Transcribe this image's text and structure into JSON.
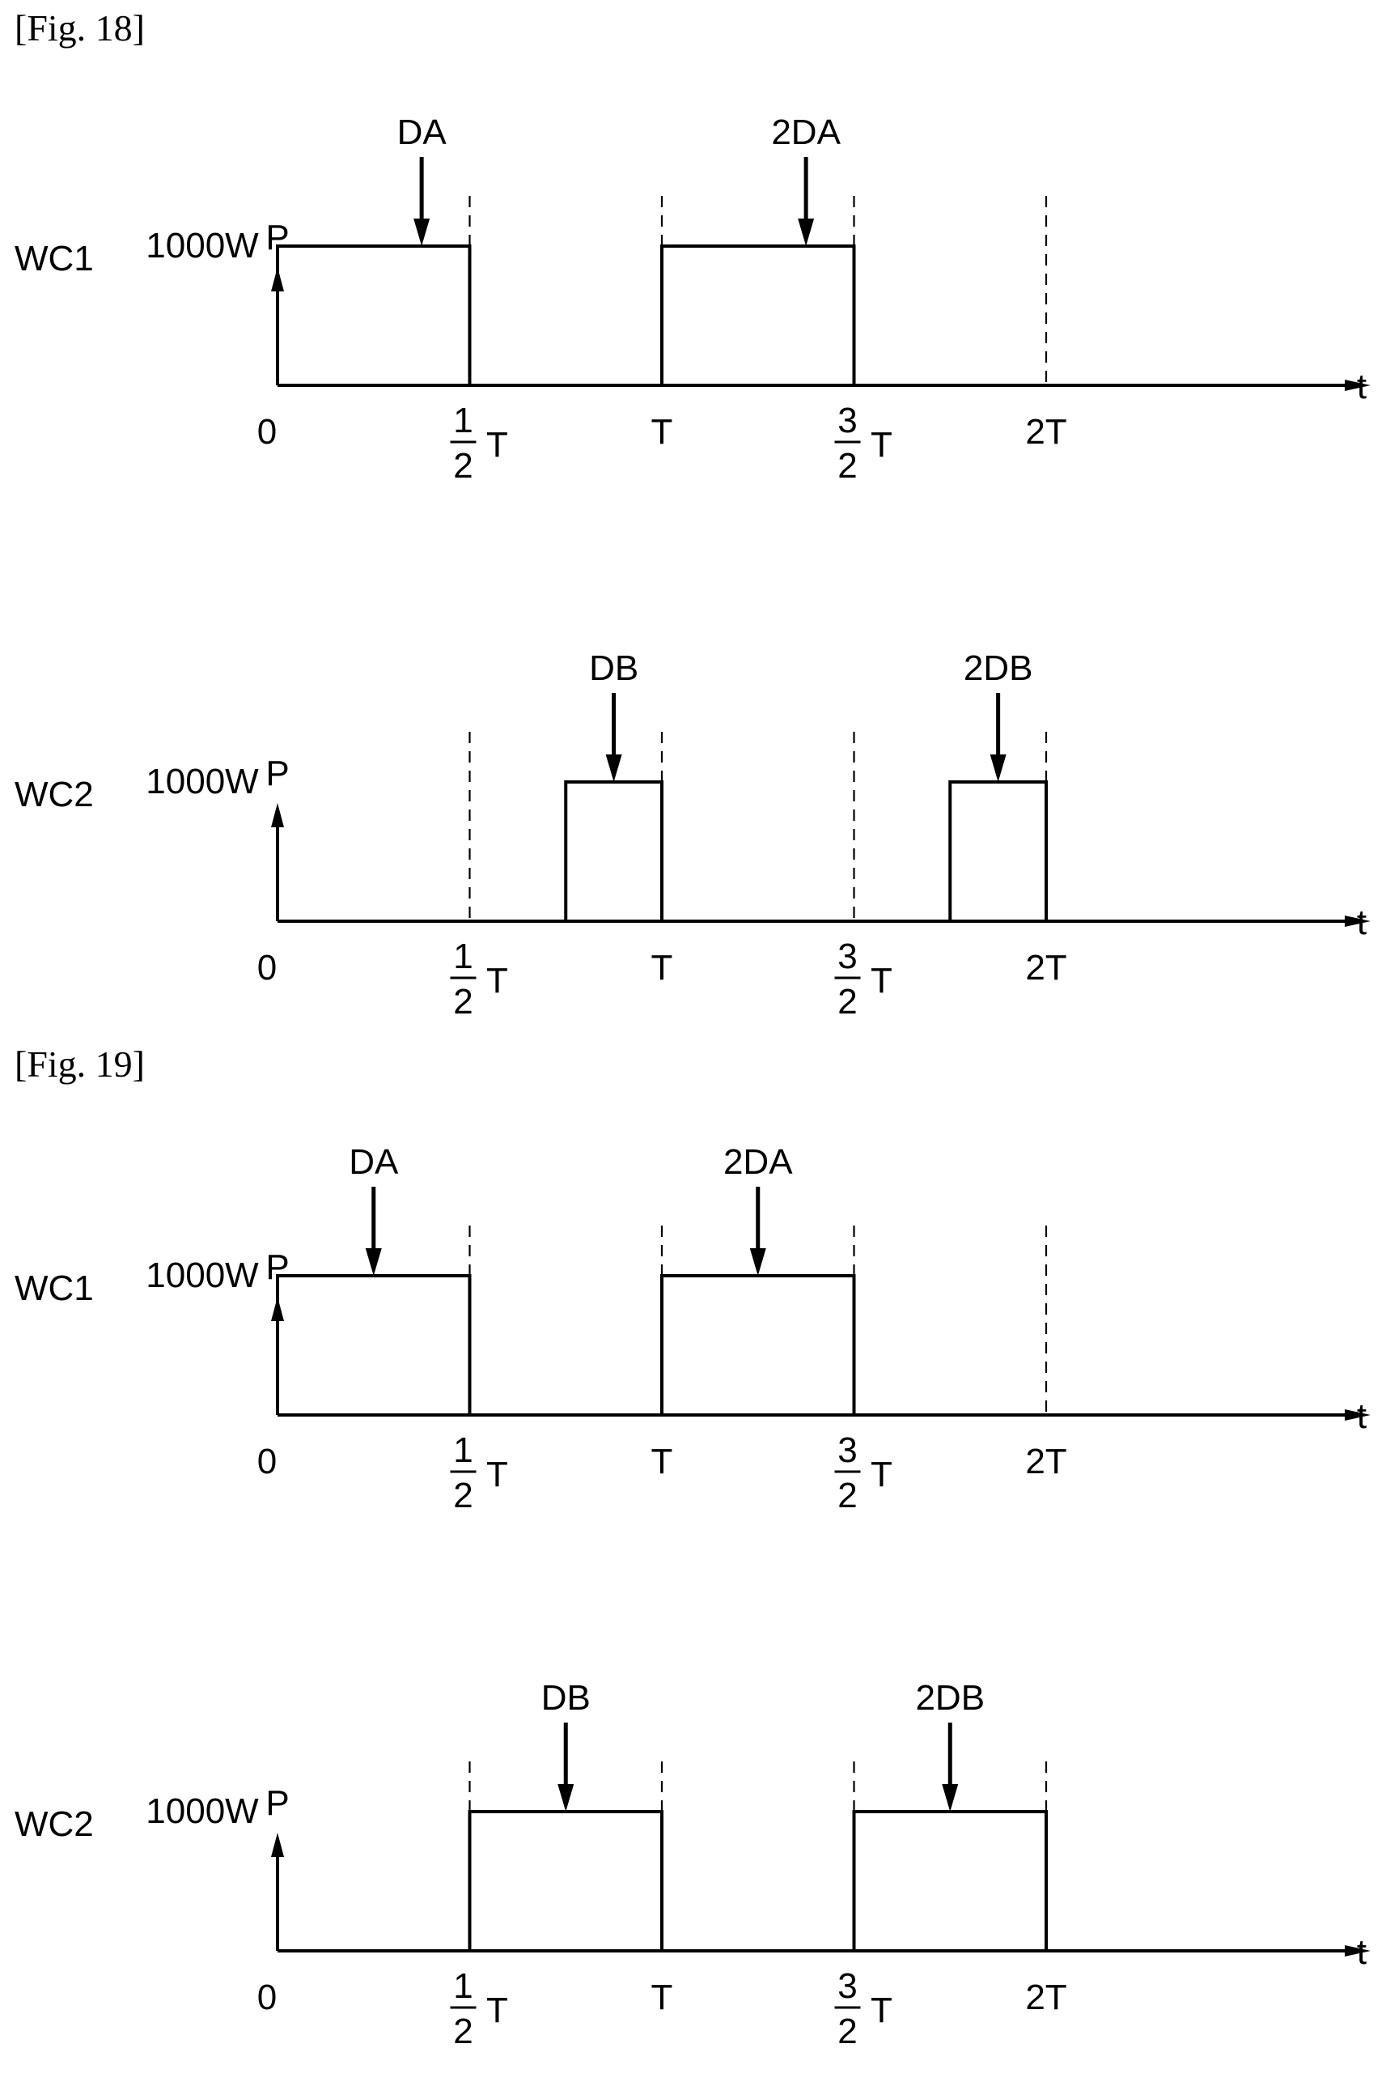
{
  "figures": [
    {
      "label": "[Fig. 18]",
      "panels": [
        {
          "channel": "WC1",
          "y_axis": "P",
          "x_axis": "t",
          "level_label": "1000W",
          "origin": "0",
          "ticks": [
            {
              "t": 0.5,
              "num": "1",
              "den": "2",
              "suffix": "T"
            },
            {
              "t": 1.0,
              "text": "T"
            },
            {
              "t": 1.5,
              "num": "3",
              "den": "2",
              "suffix": "T"
            },
            {
              "t": 2.0,
              "text": "2T"
            }
          ],
          "dashed_at": [
            0.5,
            1.0,
            1.5,
            2.0
          ],
          "pulses": [
            {
              "start": 0.0,
              "end": 0.5,
              "power": 1000,
              "marker": "DA",
              "marker_t": 0.375
            },
            {
              "start": 1.0,
              "end": 1.5,
              "power": 1000,
              "marker": "2DA",
              "marker_t": 1.375
            }
          ]
        },
        {
          "channel": "WC2",
          "y_axis": "P",
          "x_axis": "t",
          "level_label": "1000W",
          "origin": "0",
          "ticks": [
            {
              "t": 0.5,
              "num": "1",
              "den": "2",
              "suffix": "T"
            },
            {
              "t": 1.0,
              "text": "T"
            },
            {
              "t": 1.5,
              "num": "3",
              "den": "2",
              "suffix": "T"
            },
            {
              "t": 2.0,
              "text": "2T"
            }
          ],
          "dashed_at": [
            0.5,
            1.0,
            1.5,
            2.0
          ],
          "pulses": [
            {
              "start": 0.75,
              "end": 1.0,
              "power": 1000,
              "marker": "DB",
              "marker_t": 0.875
            },
            {
              "start": 1.75,
              "end": 2.0,
              "power": 1000,
              "marker": "2DB",
              "marker_t": 1.875
            }
          ]
        }
      ]
    },
    {
      "label": "[Fig. 19]",
      "panels": [
        {
          "channel": "WC1",
          "y_axis": "P",
          "x_axis": "t",
          "level_label": "1000W",
          "origin": "0",
          "ticks": [
            {
              "t": 0.5,
              "num": "1",
              "den": "2",
              "suffix": "T"
            },
            {
              "t": 1.0,
              "text": "T"
            },
            {
              "t": 1.5,
              "num": "3",
              "den": "2",
              "suffix": "T"
            },
            {
              "t": 2.0,
              "text": "2T"
            }
          ],
          "dashed_at": [
            0.5,
            1.0,
            1.5,
            2.0
          ],
          "pulses": [
            {
              "start": 0.0,
              "end": 0.5,
              "power": 1000,
              "marker": "DA",
              "marker_t": 0.25
            },
            {
              "start": 1.0,
              "end": 1.5,
              "power": 1000,
              "marker": "2DA",
              "marker_t": 1.25
            }
          ]
        },
        {
          "channel": "WC2",
          "y_axis": "P",
          "x_axis": "t",
          "level_label": "1000W",
          "origin": "0",
          "ticks": [
            {
              "t": 0.5,
              "num": "1",
              "den": "2",
              "suffix": "T"
            },
            {
              "t": 1.0,
              "text": "T"
            },
            {
              "t": 1.5,
              "num": "3",
              "den": "2",
              "suffix": "T"
            },
            {
              "t": 2.0,
              "text": "2T"
            }
          ],
          "dashed_at": [
            0.5,
            1.0,
            1.5,
            2.0
          ],
          "pulses": [
            {
              "start": 0.5,
              "end": 1.0,
              "power": 1000,
              "marker": "DB",
              "marker_t": 0.75
            },
            {
              "start": 1.5,
              "end": 2.0,
              "power": 1000,
              "marker": "2DB",
              "marker_t": 1.75
            }
          ]
        }
      ]
    }
  ]
}
